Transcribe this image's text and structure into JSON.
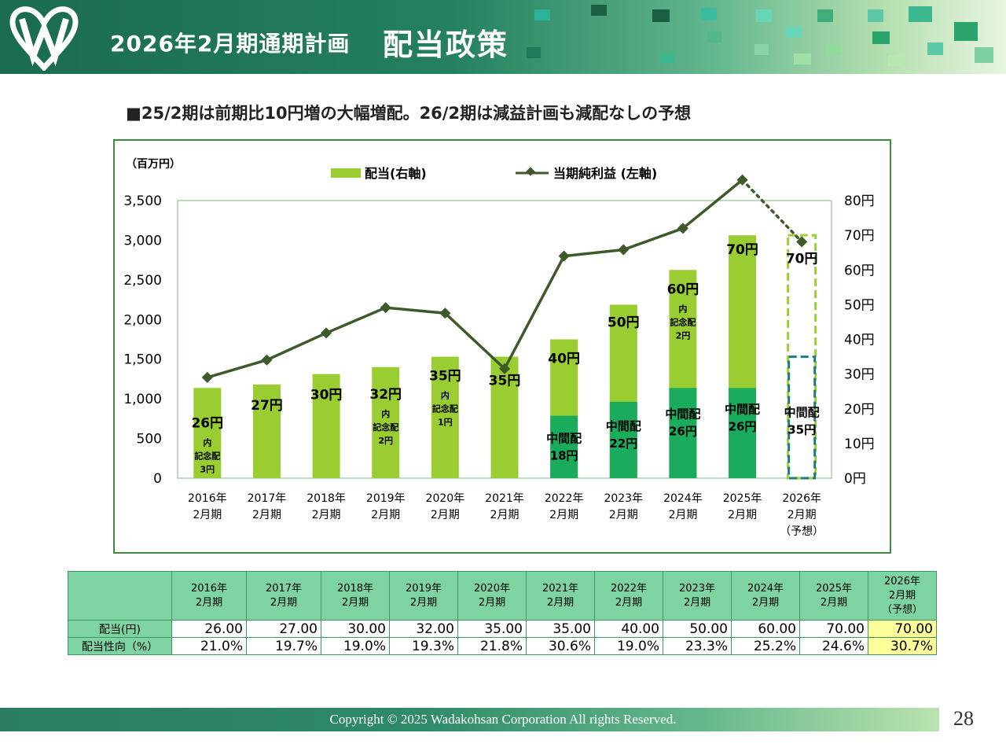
{
  "header": {
    "plan_label": "2026年2月期通期計画",
    "title": "配当政策",
    "logo_icon": "wadakohsan-w-logo-icon",
    "colors": {
      "dark": "#1a6b50",
      "light": "#b5dfb0"
    }
  },
  "subtitle": "■25/2期は前期比10円増の大幅増配。26/2期は減益計画も減配なしの予想",
  "chart_data": {
    "type": "bar+line",
    "left_unit": "（百万円）",
    "legend": {
      "bar": "配当(右軸)",
      "line": "当期純利益 (左軸)"
    },
    "left_axis": {
      "min": 0,
      "max": 3500,
      "ticks": [
        "3,500",
        "3,000",
        "2,500",
        "2,000",
        "1,500",
        "1,000",
        "500",
        "0"
      ]
    },
    "right_axis": {
      "min": 0,
      "max": 80,
      "ticks": [
        "80円",
        "70円",
        "60円",
        "50円",
        "40円",
        "30円",
        "20円",
        "10円",
        "0円"
      ]
    },
    "categories": [
      [
        "2016年",
        "2月期"
      ],
      [
        "2017年",
        "2月期"
      ],
      [
        "2018年",
        "2月期"
      ],
      [
        "2019年",
        "2月期"
      ],
      [
        "2020年",
        "2月期"
      ],
      [
        "2021年",
        "2月期"
      ],
      [
        "2022年",
        "2月期"
      ],
      [
        "2023年",
        "2月期"
      ],
      [
        "2024年",
        "2月期"
      ],
      [
        "2025年",
        "2月期"
      ],
      [
        "2026年",
        "2月期",
        "（予想）"
      ]
    ],
    "dividend": [
      26,
      27,
      30,
      32,
      35,
      35,
      40,
      50,
      60,
      70,
      70
    ],
    "interim": [
      null,
      null,
      null,
      null,
      null,
      null,
      18,
      22,
      26,
      26,
      35
    ],
    "net_income": [
      1270,
      1490,
      1830,
      2150,
      2080,
      1380,
      2800,
      2880,
      3150,
      3760,
      2980
    ],
    "forecast_index": 10,
    "bar_labels": [
      [
        "26円",
        "内",
        "記念配",
        "3円"
      ],
      [
        "27円"
      ],
      [
        "30円"
      ],
      [
        "32円",
        "内",
        "記念配",
        "2円"
      ],
      [
        "35円",
        "内",
        "記念配",
        "1円"
      ],
      [
        "35円"
      ],
      [
        "40円"
      ],
      [
        "50円"
      ],
      [
        "60円",
        "内",
        "記念配",
        "2円"
      ],
      [
        "70円"
      ],
      [
        "70円"
      ]
    ],
    "interim_labels": [
      null,
      null,
      null,
      null,
      null,
      null,
      [
        "中間配",
        "18円"
      ],
      [
        "中間配",
        "22円"
      ],
      [
        "中間配",
        "26円"
      ],
      [
        "中間配",
        "26円"
      ],
      [
        "中間配",
        "35円"
      ]
    ],
    "colors": {
      "bar": "#9acd32",
      "interim": "#1aab5c",
      "line": "#3f5a2a",
      "forecast_total": "#9acd32",
      "forecast_interim": "#1f7a7a"
    }
  },
  "table": {
    "headers": [
      [
        "2016年",
        "2月期"
      ],
      [
        "2017年",
        "2月期"
      ],
      [
        "2018年",
        "2月期"
      ],
      [
        "2019年",
        "2月期"
      ],
      [
        "2020年",
        "2月期"
      ],
      [
        "2021年",
        "2月期"
      ],
      [
        "2022年",
        "2月期"
      ],
      [
        "2023年",
        "2月期"
      ],
      [
        "2024年",
        "2月期"
      ],
      [
        "2025年",
        "2月期"
      ],
      [
        "2026年",
        "2月期",
        "（予想）"
      ]
    ],
    "rows": [
      {
        "label": "配当(円)",
        "values": [
          "26.00",
          "27.00",
          "30.00",
          "32.00",
          "35.00",
          "35.00",
          "40.00",
          "50.00",
          "60.00",
          "70.00",
          "70.00"
        ]
      },
      {
        "label": "配当性向（%）",
        "values": [
          "21.0%",
          "19.7%",
          "19.0%",
          "19.3%",
          "21.8%",
          "30.6%",
          "19.0%",
          "23.3%",
          "25.2%",
          "24.6%",
          "30.7%"
        ]
      }
    ]
  },
  "footer": {
    "copyright": "Copyright © 2025  Wadakohsan Corporation All rights Reserved.",
    "page": "28"
  }
}
